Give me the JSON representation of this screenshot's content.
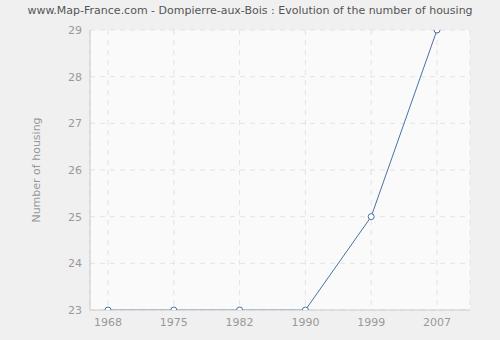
{
  "chart_data": {
    "type": "line",
    "title": "www.Map-France.com - Dompierre-aux-Bois : Evolution of the number of housing",
    "y_label": "Number of housing",
    "categories": [
      "1968",
      "1975",
      "1982",
      "1990",
      "1999",
      "2007"
    ],
    "values": [
      23,
      23,
      23,
      23,
      25,
      29
    ],
    "color": "#4a72a0",
    "ylim": [
      23,
      29
    ],
    "yticks": [
      23,
      24,
      25,
      26,
      27,
      28,
      29
    ],
    "grid": true,
    "marker": "circle"
  }
}
